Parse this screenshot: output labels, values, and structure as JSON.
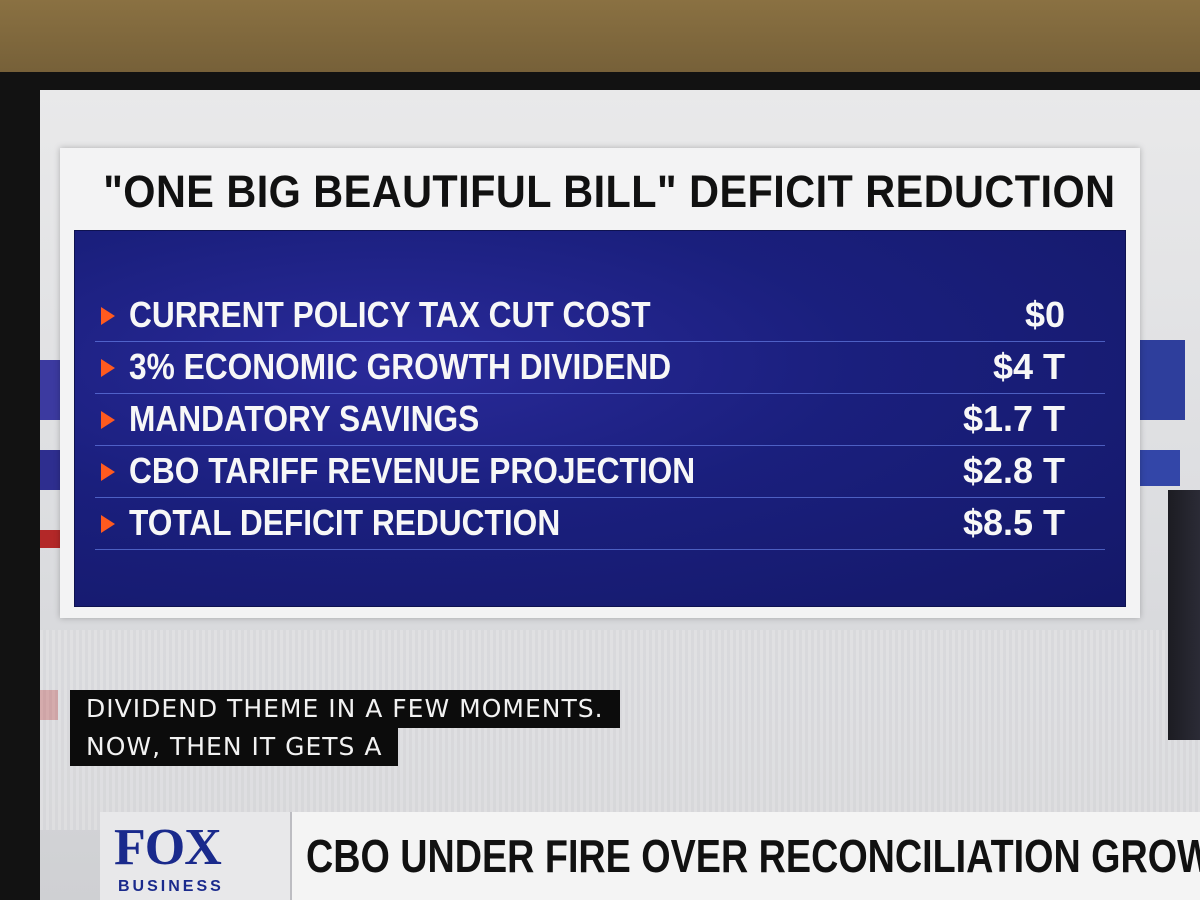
{
  "graphic": {
    "title": "\"ONE BIG BEAUTIFUL BILL\" DEFICIT REDUCTION",
    "rows": [
      {
        "label": "CURRENT POLICY TAX CUT COST",
        "value": "$0"
      },
      {
        "label": "3% ECONOMIC GROWTH DIVIDEND",
        "value": "$4 T"
      },
      {
        "label": "MANDATORY SAVINGS",
        "value": "$1.7 T"
      },
      {
        "label": "CBO TARIFF REVENUE PROJECTION",
        "value": "$2.8 T"
      },
      {
        "label": "TOTAL DEFICIT REDUCTION",
        "value": "$8.5 T"
      }
    ],
    "accent_color": "#ff5a1f",
    "board_color": "#1a1f7d"
  },
  "captions": [
    "DIVIDEND THEME IN A FEW MOMENTS.",
    "NOW, THEN IT GETS A"
  ],
  "ticker": {
    "logo_top": "FOX",
    "logo_bottom": "BUSINESS",
    "headline": "CBO UNDER FIRE OVER RECONCILIATION GROWTH ES"
  }
}
